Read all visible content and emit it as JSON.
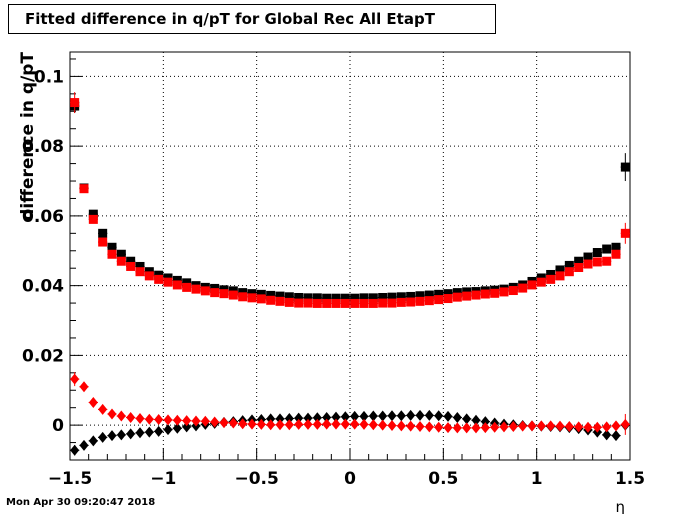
{
  "chart_data": {
    "type": "scatter",
    "title": "Fitted difference in q/pT for Global Rec All EtapT",
    "xlabel": "η",
    "ylabel": "difference in q/pT",
    "xlim": [
      -1.5,
      1.5
    ],
    "ylim": [
      -0.01,
      0.107
    ],
    "x_ticks": [
      -1.5,
      -1,
      -0.5,
      0,
      0.5,
      1,
      1.5
    ],
    "x_tick_labels": [
      "−1.5",
      "−1",
      "−0.5",
      "0",
      "0.5",
      "1",
      "1.5"
    ],
    "y_ticks": [
      0,
      0.02,
      0.04,
      0.06,
      0.08,
      0.1
    ],
    "y_tick_labels": [
      "0",
      "0.02",
      "0.04",
      "0.06",
      "0.08",
      "0.1"
    ],
    "grid": true,
    "x": [
      -1.475,
      -1.425,
      -1.375,
      -1.325,
      -1.275,
      -1.225,
      -1.175,
      -1.125,
      -1.075,
      -1.025,
      -0.975,
      -0.925,
      -0.875,
      -0.825,
      -0.775,
      -0.725,
      -0.675,
      -0.625,
      -0.575,
      -0.525,
      -0.475,
      -0.425,
      -0.375,
      -0.325,
      -0.275,
      -0.225,
      -0.175,
      -0.125,
      -0.075,
      -0.025,
      0.025,
      0.075,
      0.125,
      0.175,
      0.225,
      0.275,
      0.325,
      0.375,
      0.425,
      0.475,
      0.525,
      0.575,
      0.625,
      0.675,
      0.725,
      0.775,
      0.825,
      0.875,
      0.925,
      0.975,
      1.025,
      1.075,
      1.125,
      1.175,
      1.225,
      1.275,
      1.325,
      1.375,
      1.425,
      1.475
    ],
    "series": [
      {
        "marker": "square",
        "color": "#000000",
        "values": [
          0.0915,
          0.068,
          0.0605,
          0.055,
          0.051,
          0.049,
          0.047,
          0.0455,
          0.044,
          0.043,
          0.0422,
          0.0415,
          0.0408,
          0.04,
          0.0395,
          0.0392,
          0.0388,
          0.0385,
          0.038,
          0.0377,
          0.0375,
          0.0372,
          0.037,
          0.0368,
          0.0366,
          0.0365,
          0.0365,
          0.0364,
          0.0364,
          0.0364,
          0.0364,
          0.0365,
          0.0365,
          0.0366,
          0.0367,
          0.0368,
          0.0369,
          0.0371,
          0.0373,
          0.0375,
          0.0377,
          0.038,
          0.0382,
          0.0383,
          0.0385,
          0.0387,
          0.039,
          0.0395,
          0.0402,
          0.0412,
          0.0422,
          0.0432,
          0.0445,
          0.0458,
          0.047,
          0.0482,
          0.0495,
          0.0505,
          0.051,
          0.074
        ],
        "errors": [
          0.002,
          0.001,
          0.0008,
          0.0006,
          0.0005,
          0.0005,
          0.0005,
          0.0004,
          0.0004,
          0.0004,
          0.0004,
          0.0004,
          0.0003,
          0.0003,
          0.0003,
          0.0003,
          0.0003,
          0.0003,
          0.0003,
          0.0003,
          0.0003,
          0.0003,
          0.0003,
          0.0003,
          0.0003,
          0.0003,
          0.0003,
          0.0003,
          0.0003,
          0.0003,
          0.0003,
          0.0003,
          0.0003,
          0.0003,
          0.0003,
          0.0003,
          0.0003,
          0.0003,
          0.0003,
          0.0003,
          0.0003,
          0.0003,
          0.0003,
          0.0003,
          0.0003,
          0.0003,
          0.0003,
          0.0003,
          0.0004,
          0.0004,
          0.0004,
          0.0004,
          0.0005,
          0.0005,
          0.0005,
          0.0006,
          0.0006,
          0.0008,
          0.001,
          0.004
        ]
      },
      {
        "marker": "square",
        "color": "#ff0000",
        "values": [
          0.0925,
          0.0678,
          0.059,
          0.0525,
          0.049,
          0.047,
          0.0455,
          0.044,
          0.0428,
          0.0418,
          0.041,
          0.0402,
          0.0395,
          0.039,
          0.0385,
          0.038,
          0.0377,
          0.0373,
          0.0368,
          0.0365,
          0.0362,
          0.0358,
          0.0355,
          0.0352,
          0.035,
          0.035,
          0.0349,
          0.0349,
          0.0349,
          0.0349,
          0.0349,
          0.0349,
          0.0349,
          0.035,
          0.035,
          0.0352,
          0.0353,
          0.0355,
          0.0357,
          0.036,
          0.0363,
          0.0367,
          0.037,
          0.0373,
          0.0376,
          0.0378,
          0.0382,
          0.0386,
          0.0393,
          0.0402,
          0.041,
          0.0418,
          0.0428,
          0.044,
          0.0452,
          0.0462,
          0.0468,
          0.047,
          0.049,
          0.055
        ],
        "errors": [
          0.003,
          0.0012,
          0.0008,
          0.0006,
          0.0005,
          0.0005,
          0.0005,
          0.0004,
          0.0004,
          0.0004,
          0.0004,
          0.0004,
          0.0003,
          0.0003,
          0.0003,
          0.0003,
          0.0003,
          0.0003,
          0.0003,
          0.0003,
          0.0003,
          0.0003,
          0.0003,
          0.0003,
          0.0003,
          0.0003,
          0.0003,
          0.0003,
          0.0003,
          0.0003,
          0.0003,
          0.0003,
          0.0003,
          0.0003,
          0.0003,
          0.0003,
          0.0003,
          0.0003,
          0.0003,
          0.0003,
          0.0003,
          0.0003,
          0.0003,
          0.0003,
          0.0003,
          0.0003,
          0.0003,
          0.0003,
          0.0004,
          0.0004,
          0.0004,
          0.0004,
          0.0005,
          0.0005,
          0.0005,
          0.0006,
          0.0006,
          0.0008,
          0.001,
          0.003
        ]
      },
      {
        "marker": "diamond",
        "color": "#000000",
        "values": [
          -0.0072,
          -0.0058,
          -0.0045,
          -0.0035,
          -0.003,
          -0.0028,
          -0.0025,
          -0.0022,
          -0.002,
          -0.0018,
          -0.0013,
          -0.0009,
          -0.0005,
          -0.0002,
          0.0002,
          0.0005,
          0.0008,
          0.001,
          0.0013,
          0.0015,
          0.0016,
          0.0018,
          0.0018,
          0.0019,
          0.002,
          0.002,
          0.0021,
          0.0022,
          0.0023,
          0.0024,
          0.0025,
          0.0025,
          0.0026,
          0.0026,
          0.0027,
          0.0027,
          0.0028,
          0.0028,
          0.0028,
          0.0027,
          0.0025,
          0.0022,
          0.0018,
          0.0014,
          0.001,
          0.0006,
          0.0003,
          0.0001,
          -0.0001,
          -0.0002,
          -0.0003,
          -0.0004,
          -0.0005,
          -0.0007,
          -0.001,
          -0.0014,
          -0.002,
          -0.0028,
          -0.003,
          0.0
        ],
        "errors": [
          0.0015,
          0.0008,
          0.0006,
          0.0005,
          0.0005,
          0.0004,
          0.0004,
          0.0004,
          0.0004,
          0.0004,
          0.0003,
          0.0003,
          0.0003,
          0.0003,
          0.0003,
          0.0003,
          0.0003,
          0.0003,
          0.0003,
          0.0003,
          0.0003,
          0.0003,
          0.0003,
          0.0003,
          0.0003,
          0.0003,
          0.0003,
          0.0003,
          0.0003,
          0.0003,
          0.0003,
          0.0003,
          0.0003,
          0.0003,
          0.0003,
          0.0003,
          0.0003,
          0.0003,
          0.0003,
          0.0003,
          0.0003,
          0.0003,
          0.0003,
          0.0003,
          0.0003,
          0.0003,
          0.0003,
          0.0003,
          0.0003,
          0.0003,
          0.0004,
          0.0004,
          0.0004,
          0.0004,
          0.0004,
          0.0005,
          0.0005,
          0.0006,
          0.0008,
          0.0015
        ]
      },
      {
        "marker": "diamond",
        "color": "#ff0000",
        "values": [
          0.0132,
          0.011,
          0.0065,
          0.0045,
          0.0032,
          0.0026,
          0.0022,
          0.0019,
          0.0017,
          0.0016,
          0.0015,
          0.0014,
          0.0013,
          0.0012,
          0.0011,
          0.0009,
          0.0007,
          0.0006,
          0.0004,
          0.0003,
          0.0002,
          0.0001,
          0.0001,
          0.0001,
          0.0002,
          0.0002,
          0.0002,
          0.0003,
          0.0003,
          0.0003,
          0.0003,
          0.0002,
          0.0001,
          0.0,
          -0.0001,
          -0.0002,
          -0.0003,
          -0.0004,
          -0.0005,
          -0.0006,
          -0.0007,
          -0.0008,
          -0.0008,
          -0.0008,
          -0.0007,
          -0.0006,
          -0.0005,
          -0.0004,
          -0.0003,
          -0.0002,
          -0.0002,
          -0.0002,
          -0.0003,
          -0.0004,
          -0.0005,
          -0.0006,
          -0.0006,
          -0.0005,
          -0.0002,
          0.0002
        ],
        "errors": [
          0.002,
          0.0008,
          0.0006,
          0.0005,
          0.0005,
          0.0004,
          0.0004,
          0.0004,
          0.0004,
          0.0004,
          0.0003,
          0.0003,
          0.0003,
          0.0003,
          0.0003,
          0.0003,
          0.0003,
          0.0003,
          0.0003,
          0.0003,
          0.0003,
          0.0003,
          0.0003,
          0.0003,
          0.0003,
          0.0003,
          0.0003,
          0.0003,
          0.0003,
          0.0003,
          0.0003,
          0.0003,
          0.0003,
          0.0003,
          0.0003,
          0.0003,
          0.0003,
          0.0003,
          0.0003,
          0.0003,
          0.0003,
          0.0003,
          0.0003,
          0.0003,
          0.0003,
          0.0003,
          0.0003,
          0.0003,
          0.0003,
          0.0003,
          0.0004,
          0.0004,
          0.0004,
          0.0004,
          0.0004,
          0.0005,
          0.0005,
          0.0006,
          0.0008,
          0.003
        ]
      }
    ]
  },
  "timestamp": "Mon Apr 30 09:20:47 2018"
}
